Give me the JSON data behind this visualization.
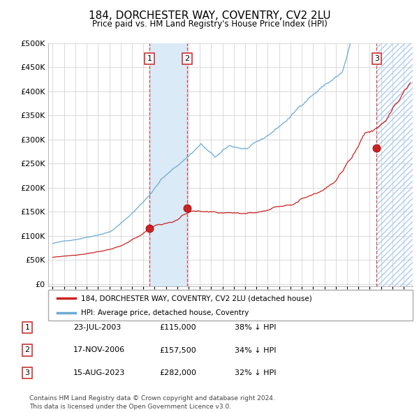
{
  "title": "184, DORCHESTER WAY, COVENTRY, CV2 2LU",
  "subtitle": "Price paid vs. HM Land Registry's House Price Index (HPI)",
  "ylabel_ticks": [
    "£0",
    "£50K",
    "£100K",
    "£150K",
    "£200K",
    "£250K",
    "£300K",
    "£350K",
    "£400K",
    "£450K",
    "£500K"
  ],
  "ytick_values": [
    0,
    50000,
    100000,
    150000,
    200000,
    250000,
    300000,
    350000,
    400000,
    450000,
    500000
  ],
  "xlim_start": 1994.6,
  "xlim_end": 2026.8,
  "ylim_min": -5000,
  "ylim_max": 500000,
  "sale_dates_num": [
    2003.55,
    2006.88,
    2023.62
  ],
  "sale_prices": [
    115000,
    157500,
    282000
  ],
  "sale_labels": [
    "1",
    "2",
    "3"
  ],
  "sale_info": [
    {
      "label": "1",
      "date": "23-JUL-2003",
      "price": "£115,000",
      "pct": "38% ↓ HPI"
    },
    {
      "label": "2",
      "date": "17-NOV-2006",
      "price": "£157,500",
      "pct": "34% ↓ HPI"
    },
    {
      "label": "3",
      "date": "15-AUG-2023",
      "price": "£282,000",
      "pct": "32% ↓ HPI"
    }
  ],
  "shaded_region": [
    2003.55,
    2006.88
  ],
  "hpi_color": "#6aaad4",
  "sale_color": "#cc2222",
  "hatch_region_start": 2023.62,
  "legend_entry1": "184, DORCHESTER WAY, COVENTRY, CV2 2LU (detached house)",
  "legend_entry2": "HPI: Average price, detached house, Coventry",
  "footnote": "Contains HM Land Registry data © Crown copyright and database right 2024.\nThis data is licensed under the Open Government Licence v3.0.",
  "background_color": "#ffffff",
  "grid_color": "#cccccc"
}
